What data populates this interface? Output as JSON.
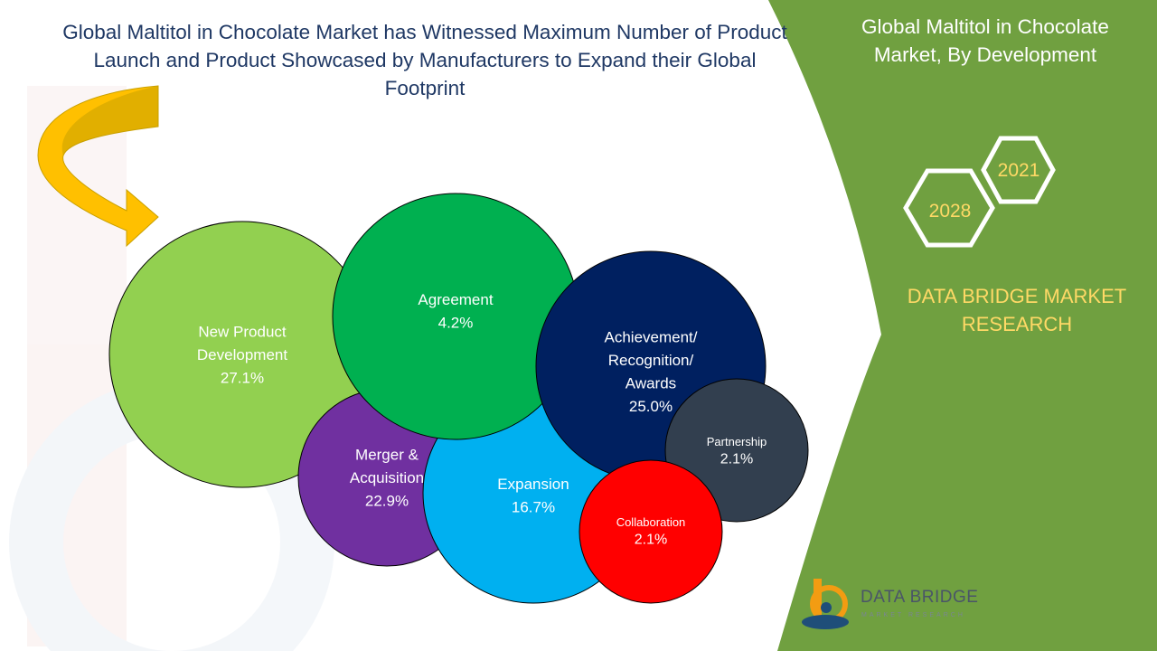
{
  "headline": "Global Maltitol in Chocolate Market has Witnessed Maximum Number of Product Launch and Product Showcased by Manufacturers to Expand their Global Footprint",
  "side_panel": {
    "title": "Global Maltitol in Chocolate Market, By Development",
    "year_start": "2021",
    "year_end": "2028",
    "brand_research": "DATA BRIDGE MARKET RESEARCH"
  },
  "logo": {
    "name": "DATA BRIDGE",
    "tagline": "MARKET RESEARCH"
  },
  "colors": {
    "green_panel": "#70a040",
    "accent_yellow": "#ffd966",
    "headline_navy": "#1f3864"
  },
  "chart_data": {
    "type": "bubble",
    "unit": "%",
    "series": [
      {
        "label": [
          "New Product",
          "Development"
        ],
        "value": 27.1,
        "value_text": "27.1%",
        "color": "#92d050"
      },
      {
        "label": [
          "Achievement/",
          "Recognition/",
          "Awards"
        ],
        "value": 25.0,
        "value_text": "25.0%",
        "color": "#002060"
      },
      {
        "label": [
          "Merger &",
          "Acquisition"
        ],
        "value": 22.9,
        "value_text": "22.9%",
        "color": "#7030a0"
      },
      {
        "label": [
          "Expansion"
        ],
        "value": 16.7,
        "value_text": "16.7%",
        "color": "#00b0f0"
      },
      {
        "label": [
          "Agreement"
        ],
        "value": 4.2,
        "value_text": "4.2%",
        "color": "#00b050"
      },
      {
        "label": [
          "Partnership"
        ],
        "value": 2.1,
        "value_text": "2.1%",
        "color": "#323f4f"
      },
      {
        "label": [
          "Collaboration"
        ],
        "value": 2.1,
        "value_text": "2.1%",
        "color": "#ff0000"
      }
    ]
  }
}
